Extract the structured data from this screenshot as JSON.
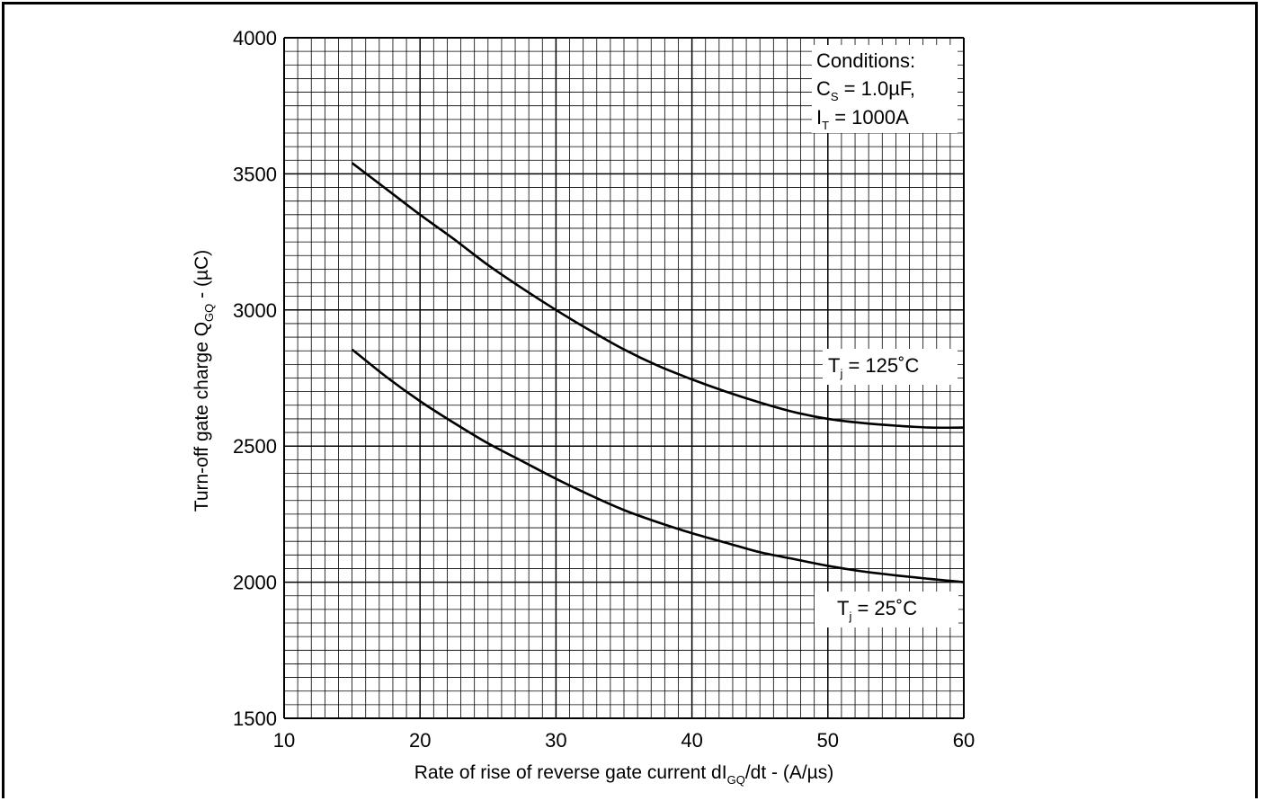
{
  "chart_data": {
    "type": "line",
    "title": "",
    "xlabel": {
      "main": "Rate of rise of reverse gate current dI",
      "sub": "GQ",
      "tail": "/dt - (A/µs)"
    },
    "ylabel": {
      "main": "Turn-off gate charge Q",
      "sub": "GQ",
      "tail": " - (µC)"
    },
    "xlim": [
      10,
      60
    ],
    "ylim": [
      1500,
      4000
    ],
    "x_ticks": [
      "10",
      "20",
      "30",
      "40",
      "50",
      "60"
    ],
    "y_ticks": [
      "1500",
      "2000",
      "2500",
      "3000",
      "3500",
      "4000"
    ],
    "grid": true,
    "series": [
      {
        "name": {
          "main": "T",
          "sub": "j",
          "tail": " = 125˚C"
        },
        "x": [
          15,
          17.5,
          20,
          22.5,
          25,
          27.5,
          30,
          32.5,
          35,
          37.5,
          40,
          42.5,
          45,
          47.5,
          50,
          52.5,
          55,
          57.5,
          60
        ],
        "y": [
          3540,
          3445,
          3350,
          3260,
          3165,
          3080,
          3000,
          2925,
          2855,
          2795,
          2745,
          2700,
          2660,
          2625,
          2600,
          2585,
          2575,
          2568,
          2568
        ]
      },
      {
        "name": {
          "main": "T",
          "sub": "j",
          "tail": " = 25˚C"
        },
        "x": [
          15,
          17.5,
          20,
          22.5,
          25,
          27.5,
          30,
          32.5,
          35,
          37.5,
          40,
          42.5,
          45,
          47.5,
          50,
          52.5,
          55,
          57.5,
          60
        ],
        "y": [
          2855,
          2755,
          2665,
          2585,
          2510,
          2445,
          2380,
          2320,
          2265,
          2220,
          2180,
          2145,
          2110,
          2085,
          2060,
          2040,
          2025,
          2012,
          2000
        ]
      }
    ],
    "annotation": {
      "title": "Conditions:",
      "lines": [
        {
          "main": "C",
          "sub": "S",
          "tail": " = 1.0µF,"
        },
        {
          "main": "I",
          "sub": "T",
          "tail": " = 1000A"
        }
      ]
    },
    "colors": {
      "line": "#000000",
      "grid": "#000000",
      "background": "#ffffff"
    }
  }
}
